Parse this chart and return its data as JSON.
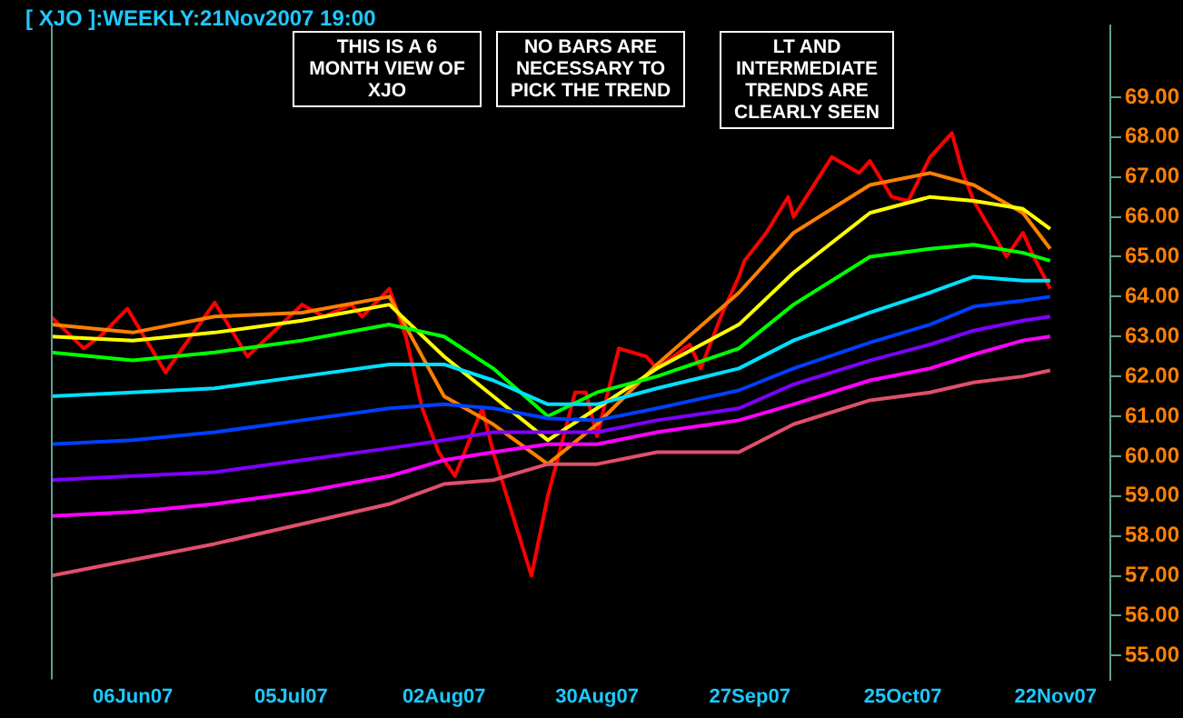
{
  "chart_data": {
    "type": "line",
    "title": "[ XJO ]:WEEKLY:21Nov2007 19:00",
    "annotations": [
      "THIS IS A 6 MONTH VIEW OF XJO",
      "NO BARS ARE NECESSARY TO PICK THE TREND",
      "LT AND INTERMEDIATE TRENDS ARE CLEARLY SEEN"
    ],
    "xlim": [
      "2007-05-22",
      "2007-12-02"
    ],
    "xticks": [
      {
        "value": "2007-06-06",
        "label": "06Jun07"
      },
      {
        "value": "2007-07-05",
        "label": "05Jul07"
      },
      {
        "value": "2007-08-02",
        "label": "02Aug07"
      },
      {
        "value": "2007-08-30",
        "label": "30Aug07"
      },
      {
        "value": "2007-09-27",
        "label": "27Sep07"
      },
      {
        "value": "2007-10-25",
        "label": "25Oct07"
      },
      {
        "value": "2007-11-22",
        "label": "22Nov07"
      }
    ],
    "ylim": [
      54.4,
      70.8
    ],
    "yticks": [
      {
        "value": 55,
        "label": "55.00"
      },
      {
        "value": 56,
        "label": "56.00"
      },
      {
        "value": 57,
        "label": "57.00"
      },
      {
        "value": 58,
        "label": "58.00"
      },
      {
        "value": 59,
        "label": "59.00"
      },
      {
        "value": 60,
        "label": "60.00"
      },
      {
        "value": 61,
        "label": "61.00"
      },
      {
        "value": 62,
        "label": "62.00"
      },
      {
        "value": 63,
        "label": "63.00"
      },
      {
        "value": 64,
        "label": "64.00"
      },
      {
        "value": 65,
        "label": "65.00"
      },
      {
        "value": 66,
        "label": "66.00"
      },
      {
        "value": 67,
        "label": "67.00"
      },
      {
        "value": 68,
        "label": "68.00"
      },
      {
        "value": 69,
        "label": "69.00"
      }
    ],
    "grid": false,
    "legend": false,
    "marker": "none",
    "line_style": "solid",
    "x": [
      "2007-05-22",
      "2007-06-06",
      "2007-06-21",
      "2007-07-07",
      "2007-07-23",
      "2007-08-02",
      "2007-08-11",
      "2007-08-21",
      "2007-08-30",
      "2007-09-10",
      "2007-09-25",
      "2007-10-05",
      "2007-10-19",
      "2007-10-30",
      "2007-11-07",
      "2007-11-16",
      "2007-11-21"
    ],
    "series": [
      {
        "color": "#e0506a",
        "values": [
          57.0,
          57.4,
          57.8,
          58.3,
          58.8,
          59.3,
          59.4,
          59.8,
          59.8,
          60.1,
          60.1,
          60.8,
          61.4,
          61.6,
          61.85,
          62.0,
          62.15
        ]
      },
      {
        "color": "#ff00ff",
        "values": [
          58.5,
          58.6,
          58.8,
          59.1,
          59.5,
          59.9,
          60.1,
          60.3,
          60.3,
          60.6,
          60.9,
          61.3,
          61.9,
          62.2,
          62.55,
          62.9,
          63.0
        ]
      },
      {
        "color": "#8000ff",
        "values": [
          59.4,
          59.5,
          59.6,
          59.9,
          60.2,
          60.4,
          60.6,
          60.6,
          60.6,
          60.9,
          61.2,
          61.8,
          62.4,
          62.8,
          63.15,
          63.4,
          63.5
        ]
      },
      {
        "color": "#0040ff",
        "values": [
          60.3,
          60.4,
          60.6,
          60.9,
          61.2,
          61.3,
          61.2,
          60.95,
          60.9,
          61.2,
          61.65,
          62.2,
          62.85,
          63.3,
          63.75,
          63.9,
          64.0
        ]
      },
      {
        "color": "#00e0ff",
        "values": [
          61.5,
          61.6,
          61.7,
          62.0,
          62.3,
          62.3,
          61.9,
          61.3,
          61.3,
          61.7,
          62.2,
          62.9,
          63.6,
          64.1,
          64.5,
          64.4,
          64.4
        ]
      },
      {
        "color": "#00ff00",
        "values": [
          62.6,
          62.4,
          62.6,
          62.9,
          63.3,
          63.0,
          62.2,
          61.0,
          61.6,
          62.0,
          62.7,
          63.8,
          65.0,
          65.2,
          65.3,
          65.1,
          64.9
        ]
      },
      {
        "color": "#ffff00",
        "values": [
          63.0,
          62.9,
          63.1,
          63.4,
          63.8,
          62.5,
          61.5,
          60.4,
          61.2,
          62.2,
          63.3,
          64.6,
          66.1,
          66.5,
          66.4,
          66.2,
          65.7
        ]
      },
      {
        "color": "#ff8000",
        "values": [
          63.3,
          63.1,
          63.5,
          63.6,
          64.0,
          61.5,
          60.8,
          59.8,
          60.8,
          62.3,
          64.1,
          65.6,
          66.8,
          67.1,
          66.8,
          66.1,
          65.2
        ]
      },
      {
        "color": "#ff0000",
        "x": [
          "2007-05-22",
          "2007-05-28",
          "2007-05-31",
          "2007-06-05",
          "2007-06-12",
          "2007-06-21",
          "2007-06-27",
          "2007-07-07",
          "2007-07-11",
          "2007-07-16",
          "2007-07-18",
          "2007-07-23",
          "2007-07-26",
          "2007-07-29",
          "2007-08-01",
          "2007-08-04",
          "2007-08-09",
          "2007-08-11",
          "2007-08-18",
          "2007-08-21",
          "2007-08-26",
          "2007-08-28",
          "2007-08-30",
          "2007-09-03",
          "2007-09-08",
          "2007-09-10",
          "2007-09-16",
          "2007-09-18",
          "2007-09-22",
          "2007-09-25",
          "2007-09-26",
          "2007-09-30",
          "2007-10-04",
          "2007-10-05",
          "2007-10-12",
          "2007-10-17",
          "2007-10-19",
          "2007-10-23",
          "2007-10-26",
          "2007-10-30",
          "2007-11-03",
          "2007-11-05",
          "2007-11-07",
          "2007-11-13",
          "2007-11-16",
          "2007-11-18",
          "2007-11-21"
        ],
        "values": [
          63.5,
          62.7,
          63.0,
          63.7,
          62.1,
          63.85,
          62.5,
          63.8,
          63.5,
          63.8,
          63.5,
          64.2,
          63.0,
          61.2,
          60.1,
          59.5,
          61.2,
          60.1,
          57.0,
          59.0,
          61.6,
          61.6,
          60.5,
          62.7,
          62.5,
          62.2,
          62.8,
          62.2,
          63.6,
          64.5,
          64.9,
          65.6,
          66.5,
          66.0,
          67.5,
          67.1,
          67.4,
          66.5,
          66.4,
          67.5,
          68.1,
          67.1,
          66.4,
          65.0,
          65.6,
          65.0,
          64.2
        ]
      }
    ]
  }
}
